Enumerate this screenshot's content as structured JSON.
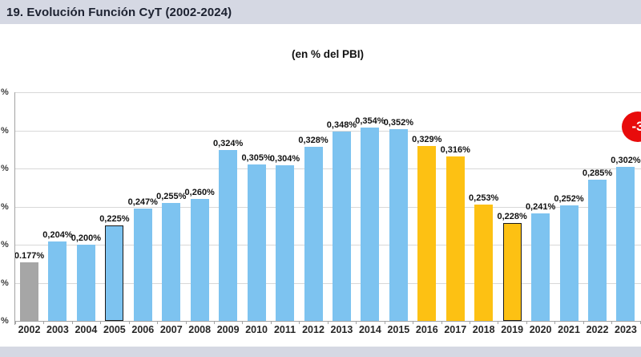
{
  "header": {
    "title": "19. Evolución Función CyT (2002-2024)"
  },
  "chart_header": {
    "subtitle": "(en % del PBI)"
  },
  "annotation_badge": {
    "visible_text": "-3",
    "bg_color": "#e80b0b",
    "text_color": "#ffffff"
  },
  "colors": {
    "header_bg": "#d5d8e3",
    "bar_blue": "#7dc3f0",
    "bar_yellow": "#fdc113",
    "bar_gray": "#a6a6a6",
    "gridline": "#d8d8d8",
    "axis": "#a3a3a3"
  },
  "chart_data": {
    "type": "bar",
    "title": "(en % del PBI)",
    "categories": [
      "2002",
      "2003",
      "2004",
      "2005",
      "2006",
      "2007",
      "2008",
      "2009",
      "2010",
      "2011",
      "2012",
      "2013",
      "2014",
      "2015",
      "2016",
      "2017",
      "2018",
      "2019",
      "2020",
      "2021",
      "2022",
      "2023"
    ],
    "values": [
      0.177,
      0.204,
      0.2,
      0.225,
      0.247,
      0.255,
      0.26,
      0.324,
      0.305,
      0.304,
      0.328,
      0.348,
      0.354,
      0.352,
      0.329,
      0.316,
      0.253,
      0.228,
      0.241,
      0.252,
      0.285,
      0.302
    ],
    "value_labels": [
      "0.177%",
      "0,204%",
      "0,200%",
      "0,225%",
      "0,247%",
      "0,255%",
      "0,260%",
      "0,324%",
      "0,305%",
      "0,304%",
      "0,328%",
      "0,348%",
      "0,354%",
      "0,352%",
      "0,329%",
      "0,316%",
      "0,253%",
      "0,228%",
      "0,241%",
      "0,252%",
      "0,285%",
      "0,302%"
    ],
    "bar_color_keys": [
      "gray",
      "blue",
      "blue",
      "blue",
      "blue",
      "blue",
      "blue",
      "blue",
      "blue",
      "blue",
      "blue",
      "blue",
      "blue",
      "blue",
      "yellow",
      "yellow",
      "yellow",
      "yellow",
      "blue",
      "blue",
      "blue",
      "blue"
    ],
    "outlined_years": [
      "2005",
      "2019"
    ],
    "xlabel": "",
    "ylabel": "",
    "ylim": [
      0.1,
      0.4
    ],
    "ytick_step": 0.05,
    "ytick_visible_label": "%",
    "grid": true,
    "legend": "none"
  }
}
